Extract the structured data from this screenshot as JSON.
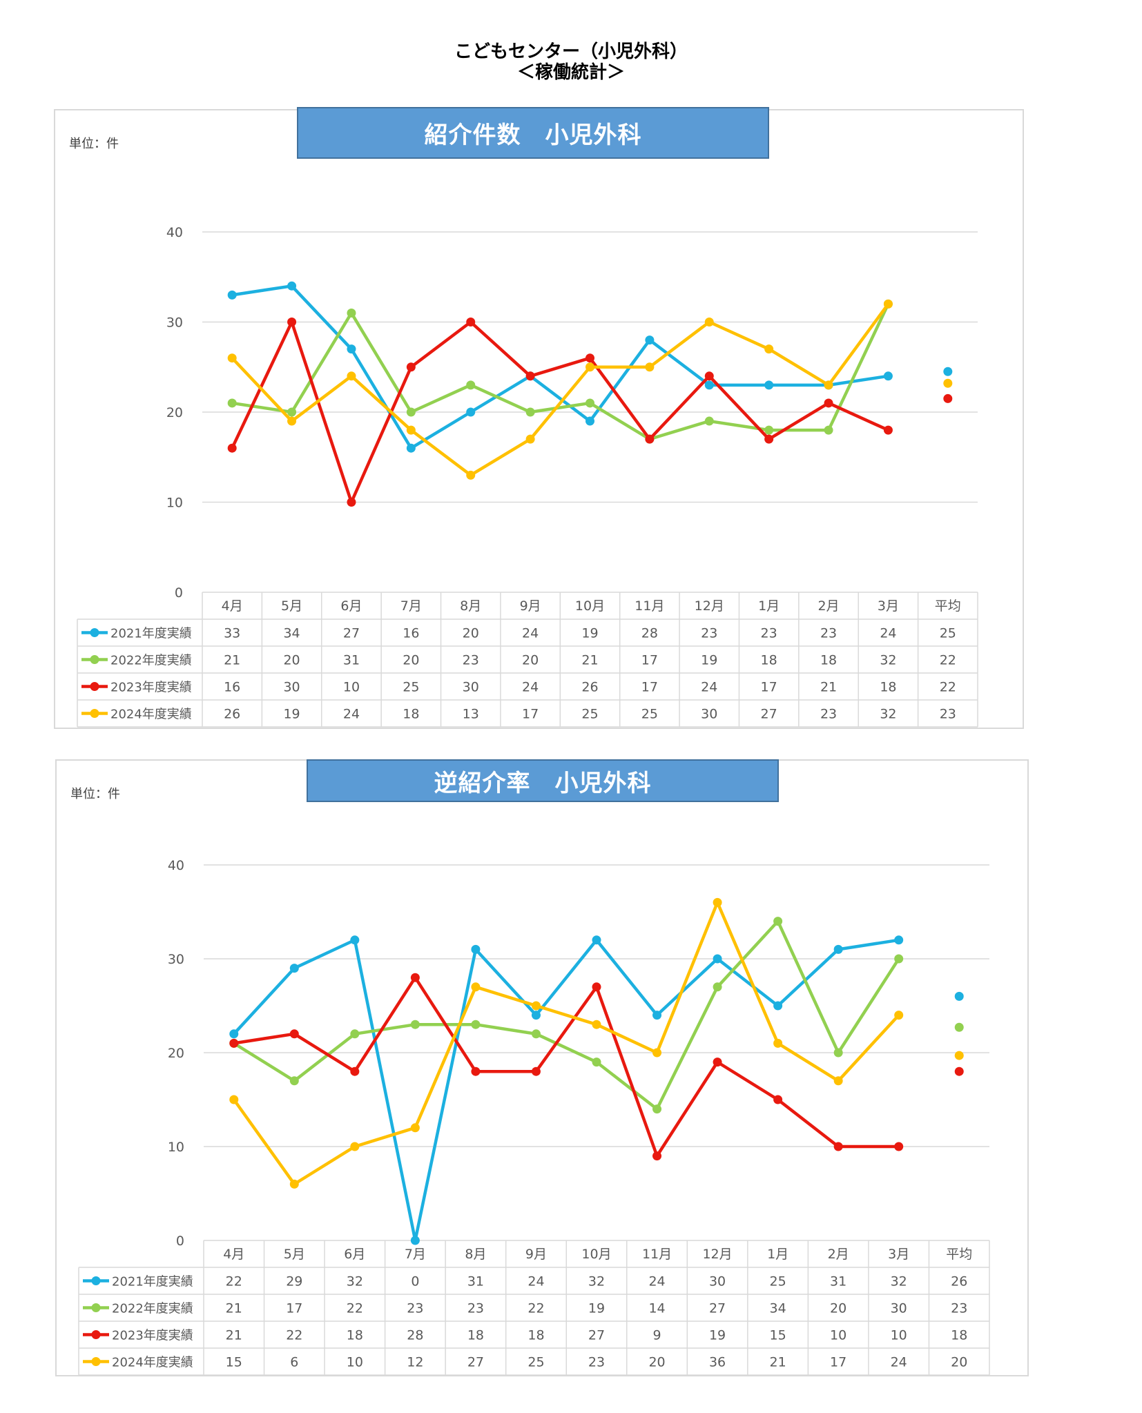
{
  "title": {
    "line1": "こどもセンター（小児外科）",
    "line2": "＜稼働統計＞"
  },
  "charts": [
    {
      "banner": "紹介件数　小児外科",
      "unit": "単位：件",
      "avg_header": "平均"
    },
    {
      "banner": "逆紹介率　小児外科",
      "unit": "単位：件",
      "avg_header": "平均"
    }
  ],
  "chart_data": [
    {
      "type": "line",
      "title": "紹介件数　小児外科",
      "ylabel": "単位：件",
      "ylim": [
        0,
        40
      ],
      "yticks": [
        0,
        10,
        20,
        30,
        40
      ],
      "categories": [
        "4月",
        "5月",
        "6月",
        "7月",
        "8月",
        "9月",
        "10月",
        "11月",
        "12月",
        "1月",
        "2月",
        "3月"
      ],
      "avg_label": "平均",
      "series": [
        {
          "name": "2021年度実績",
          "color": "#1cb0e0",
          "values": [
            33,
            34,
            27,
            16,
            20,
            24,
            19,
            28,
            23,
            23,
            23,
            24
          ],
          "avg": 25,
          "avg_marker": 24.5
        },
        {
          "name": "2022年度実績",
          "color": "#92d050",
          "values": [
            21,
            20,
            31,
            20,
            23,
            20,
            21,
            17,
            19,
            18,
            18,
            32
          ],
          "avg": 22,
          "avg_marker": null
        },
        {
          "name": "2023年度実績",
          "color": "#e8190f",
          "values": [
            16,
            30,
            10,
            25,
            30,
            24,
            26,
            17,
            24,
            17,
            21,
            18
          ],
          "avg": 22,
          "avg_marker": 21.5
        },
        {
          "name": "2024年度実績",
          "color": "#ffc000",
          "values": [
            26,
            19,
            24,
            18,
            13,
            17,
            25,
            25,
            30,
            27,
            23,
            32
          ],
          "avg": 23,
          "avg_marker": 23.2
        }
      ]
    },
    {
      "type": "line",
      "title": "逆紹介率　小児外科",
      "ylabel": "単位：件",
      "ylim": [
        0,
        40
      ],
      "yticks": [
        0,
        10,
        20,
        30,
        40
      ],
      "categories": [
        "4月",
        "5月",
        "6月",
        "7月",
        "8月",
        "9月",
        "10月",
        "11月",
        "12月",
        "1月",
        "2月",
        "3月"
      ],
      "avg_label": "平均",
      "series": [
        {
          "name": "2021年度実績",
          "color": "#1cb0e0",
          "values": [
            22,
            29,
            32,
            0,
            31,
            24,
            32,
            24,
            30,
            25,
            31,
            32
          ],
          "avg": 26,
          "avg_marker": 26
        },
        {
          "name": "2022年度実績",
          "color": "#92d050",
          "values": [
            21,
            17,
            22,
            23,
            23,
            22,
            19,
            14,
            27,
            34,
            20,
            30
          ],
          "avg": 23,
          "avg_marker": 22.7
        },
        {
          "name": "2023年度実績",
          "color": "#e8190f",
          "values": [
            21,
            22,
            18,
            28,
            18,
            18,
            27,
            9,
            19,
            15,
            10,
            10
          ],
          "avg": 18,
          "avg_marker": 18
        },
        {
          "name": "2024年度実績",
          "color": "#ffc000",
          "values": [
            15,
            6,
            10,
            12,
            27,
            25,
            23,
            20,
            36,
            21,
            17,
            24
          ],
          "avg": 20,
          "avg_marker": 19.7
        }
      ]
    }
  ]
}
